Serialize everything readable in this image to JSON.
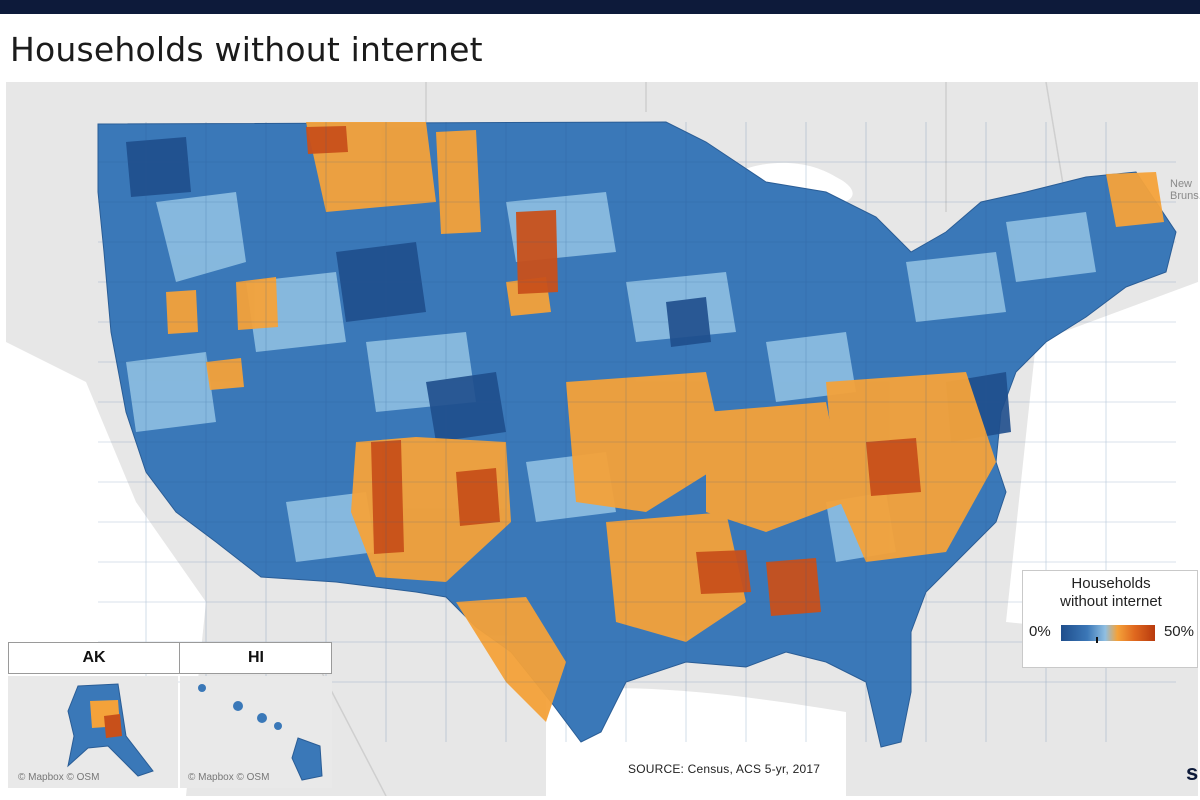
{
  "title": "Households without internet",
  "legend": {
    "title_line1": "Households",
    "title_line2": "without internet",
    "min_label": "0%",
    "max_label": "50%",
    "min_value": 0,
    "max_value": 50,
    "colors": [
      "#1f4e8c",
      "#3b77b7",
      "#8fbfe2",
      "#f4a23a",
      "#e0691f",
      "#b83a0e"
    ]
  },
  "insets": {
    "alaska_label": "AK",
    "hawaii_label": "HI",
    "alaska_credit": "© Mapbox © OSM",
    "hawaii_credit": "© Mapbox © OSM"
  },
  "background_labels": {
    "new_brunswick": "New Bruns..."
  },
  "source": "SOURCE: Census, ACS 5-yr, 2017",
  "corner_glyph": "s",
  "colors": {
    "background": "#e7e7e7",
    "water": "#ffffff",
    "top_bar": "#0d1a3a"
  }
}
